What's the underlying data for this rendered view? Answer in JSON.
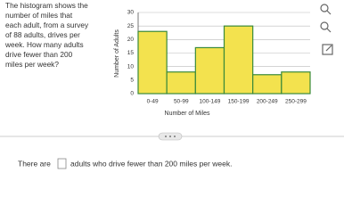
{
  "question": {
    "lines": [
      "The histogram shows the",
      "number of miles that",
      "each adult, from a survey",
      "of 88 adults, drives per",
      "week. How many adults",
      "drive fewer than 200",
      "miles per week?"
    ]
  },
  "chart_data": {
    "type": "bar",
    "xlabel": "Number of Miles",
    "ylabel": "Number of Adults",
    "categories": [
      "0-49",
      "50-99",
      "100-149",
      "150-199",
      "200-249",
      "250-299"
    ],
    "values": [
      23,
      8,
      17,
      25,
      7,
      8
    ],
    "color": "#f3e24e",
    "edge_color": "#3a8a3a",
    "ylim": [
      0,
      30
    ],
    "yticks": [
      0,
      5,
      10,
      15,
      20,
      25,
      30
    ],
    "grid": true
  },
  "answer": {
    "before": "There are",
    "after": "adults who drive fewer than 200 miles per week."
  }
}
